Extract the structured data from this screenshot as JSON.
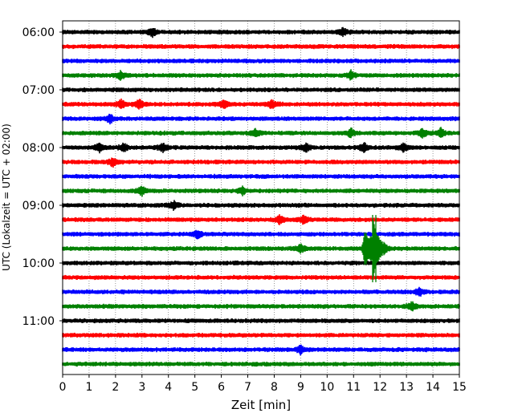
{
  "chart_data": {
    "type": "line",
    "title": "",
    "xlabel": "Zeit  [min]",
    "ylabel": "UTC (Lokalzeit = UTC + 02:00)",
    "xlim": [
      0,
      15
    ],
    "x_ticks": [
      "0",
      "1",
      "2",
      "3",
      "4",
      "5",
      "6",
      "7",
      "8",
      "9",
      "10",
      "11",
      "12",
      "13",
      "14",
      "15"
    ],
    "y_tick_labels": [
      "06:00",
      "07:00",
      "08:00",
      "09:00",
      "10:00",
      "11:00"
    ],
    "grid": "vertical dotted lines at every minute",
    "legend": "none",
    "trace_interval_minutes": 15,
    "start_time": "06:00",
    "colors": [
      "#000000",
      "#ff0000",
      "#0000ff",
      "#008000"
    ],
    "traces": [
      {
        "start": "06:00",
        "events_min": [
          3.4,
          10.6
        ]
      },
      {
        "start": "06:15",
        "events_min": []
      },
      {
        "start": "06:30",
        "events_min": []
      },
      {
        "start": "06:45",
        "events_min": [
          2.2,
          10.9
        ]
      },
      {
        "start": "07:00",
        "events_min": []
      },
      {
        "start": "07:15",
        "events_min": [
          2.2,
          2.9,
          6.1,
          7.9
        ]
      },
      {
        "start": "07:30",
        "events_min": [
          1.8
        ]
      },
      {
        "start": "07:45",
        "events_min": [
          7.3,
          10.9,
          13.6,
          14.3
        ]
      },
      {
        "start": "08:00",
        "events_min": [
          1.4,
          2.3,
          3.8,
          9.2,
          11.4,
          12.9
        ]
      },
      {
        "start": "08:15",
        "events_min": [
          1.9
        ]
      },
      {
        "start": "08:30",
        "events_min": []
      },
      {
        "start": "08:45",
        "events_min": [
          3.0,
          6.8
        ]
      },
      {
        "start": "09:00",
        "events_min": [
          4.2
        ]
      },
      {
        "start": "09:15",
        "events_min": [
          8.2,
          9.1
        ]
      },
      {
        "start": "09:30",
        "events_min": [
          5.1
        ]
      },
      {
        "start": "09:45",
        "events_min": [
          9.0,
          11.6
        ]
      },
      {
        "start": "10:00",
        "events_min": []
      },
      {
        "start": "10:15",
        "events_min": []
      },
      {
        "start": "10:30",
        "events_min": [
          13.5
        ]
      },
      {
        "start": "10:45",
        "events_min": [
          13.2
        ]
      },
      {
        "start": "11:00",
        "events_min": []
      },
      {
        "start": "11:15",
        "events_min": []
      },
      {
        "start": "11:30",
        "events_min": [
          9.0
        ]
      },
      {
        "start": "11:45",
        "events_min": []
      }
    ]
  }
}
